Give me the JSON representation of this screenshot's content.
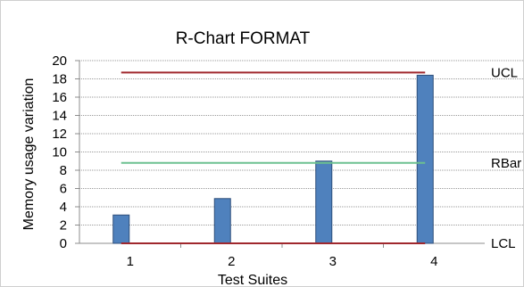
{
  "chart_data": {
    "type": "bar",
    "title": "R-Chart FORMAT",
    "xlabel": "Test Suites",
    "ylabel": "Memory usage variation",
    "categories": [
      "1",
      "2",
      "3",
      "4"
    ],
    "series": [
      {
        "values": [
          3.1,
          4.9,
          9.0,
          18.4
        ],
        "color": "#4f81bd"
      }
    ],
    "ylim": [
      0,
      20
    ],
    "yticks": [
      "0",
      "2",
      "4",
      "6",
      "8",
      "10",
      "12",
      "14",
      "16",
      "18",
      "20"
    ],
    "grid": true,
    "reference_lines": [
      {
        "label": "UCL",
        "value": 18.7,
        "color": "#a0282d"
      },
      {
        "label": "RBar",
        "value": 8.8,
        "color": "#6cc090"
      },
      {
        "label": "LCL",
        "value": 0,
        "color": "#a0282d"
      }
    ]
  }
}
